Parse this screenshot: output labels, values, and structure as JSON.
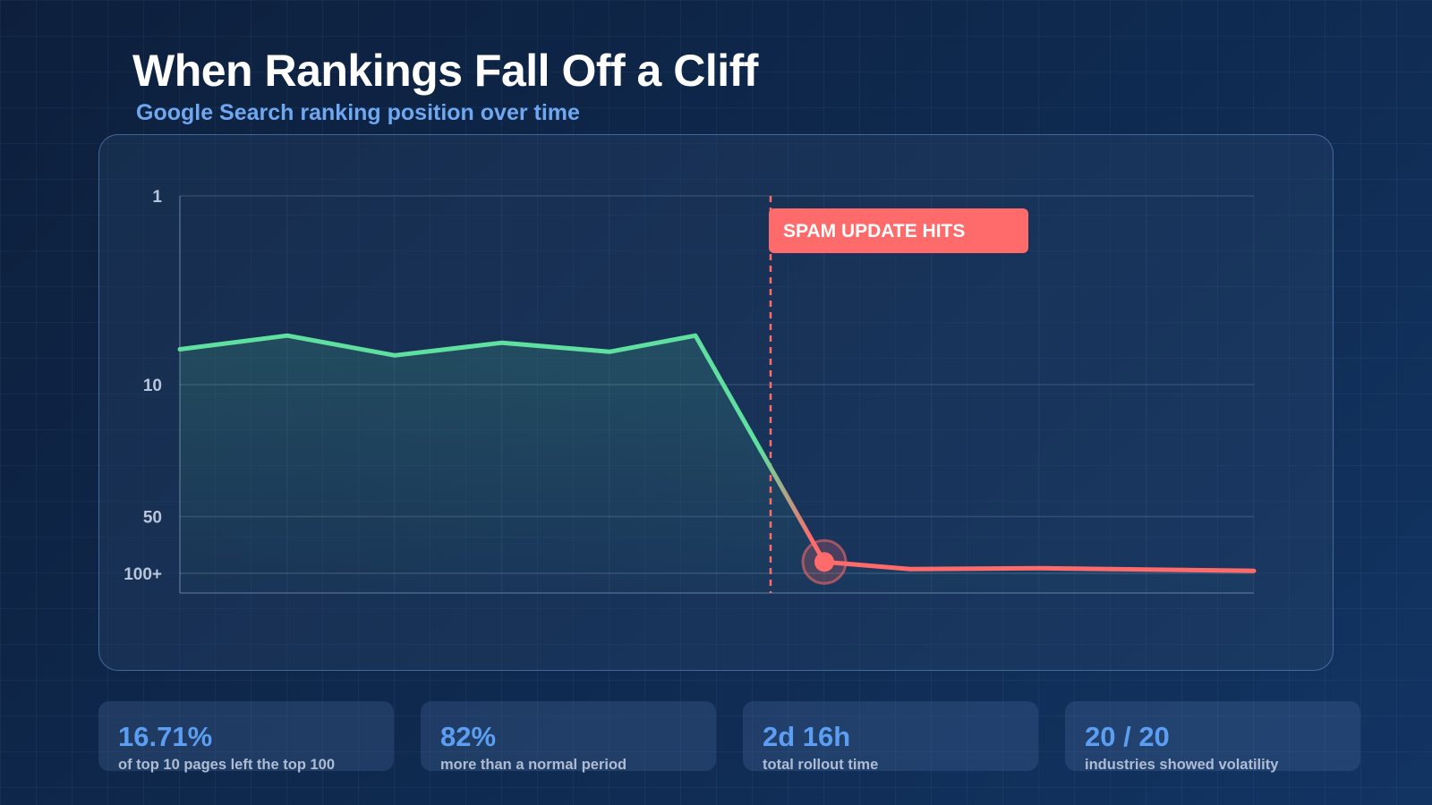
{
  "header": {
    "title": "When Rankings Fall Off a Cliff",
    "subtitle": "Google Search ranking position over time"
  },
  "chart_data": {
    "type": "line",
    "title": "When Rankings Fall Off a Cliff",
    "subtitle": "Google Search ranking position over time",
    "xlabel": "",
    "ylabel": "",
    "y_scale": "log",
    "y_inverted": true,
    "y_ticks": [
      {
        "label": "1",
        "value": 1
      },
      {
        "label": "10",
        "value": 10
      },
      {
        "label": "50",
        "value": 50
      },
      {
        "label": "100+",
        "value": 100
      }
    ],
    "ylim": [
      1,
      100
    ],
    "grid": true,
    "series": [
      {
        "x": [
          0,
          1,
          2,
          3,
          4,
          4.8,
          6,
          6.8,
          8,
          10
        ],
        "values": [
          6.5,
          5.5,
          7,
          6,
          6.7,
          5.5,
          87,
          95,
          94,
          97
        ],
        "highlight_index": 6,
        "color_before": "#5fe0a0",
        "color_after": "#ff6b6b"
      }
    ],
    "annotations": [
      {
        "type": "vline",
        "x": 5.5,
        "color": "#ff6b6b"
      },
      {
        "type": "label",
        "text": "SPAM UPDATE HITS",
        "color": "#ff6b6b"
      }
    ]
  },
  "stats": [
    {
      "value": "16.71%",
      "label": "of top 10 pages left the top 100"
    },
    {
      "value": "82%",
      "label": "more than a normal period"
    },
    {
      "value": "2d 16h",
      "label": "total rollout time"
    },
    {
      "value": "20 / 20",
      "label": "industries showed volatility"
    }
  ],
  "colors": {
    "background": "#0f2a50",
    "accent_blue": "#5b9ef2",
    "line_green": "#5fe0a0",
    "alert_red": "#ff6b6b"
  }
}
